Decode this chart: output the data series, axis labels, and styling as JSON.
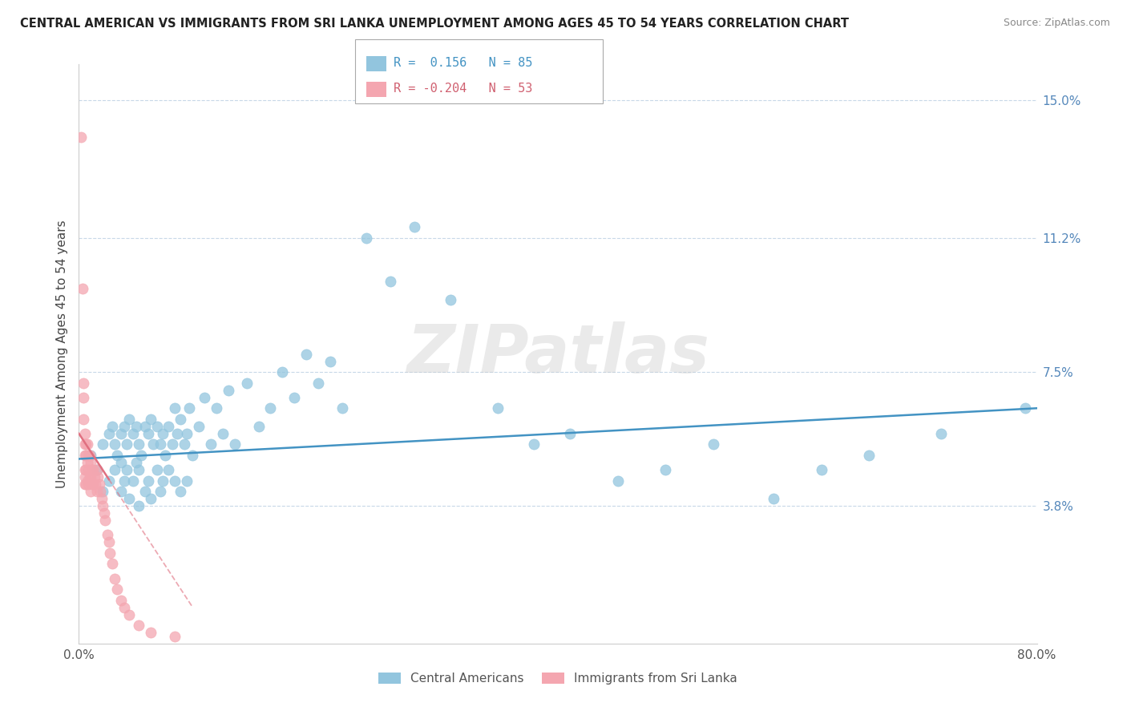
{
  "title": "CENTRAL AMERICAN VS IMMIGRANTS FROM SRI LANKA UNEMPLOYMENT AMONG AGES 45 TO 54 YEARS CORRELATION CHART",
  "source": "Source: ZipAtlas.com",
  "ylabel": "Unemployment Among Ages 45 to 54 years",
  "xlim": [
    0.0,
    0.8
  ],
  "ylim": [
    0.0,
    0.16
  ],
  "yticks": [
    0.038,
    0.075,
    0.112,
    0.15
  ],
  "ytick_labels": [
    "3.8%",
    "7.5%",
    "11.2%",
    "15.0%"
  ],
  "xticks": [
    0.0,
    0.8
  ],
  "xtick_labels": [
    "0.0%",
    "80.0%"
  ],
  "r_blue": 0.156,
  "n_blue": 85,
  "r_pink": -0.204,
  "n_pink": 53,
  "blue_color": "#92c5de",
  "pink_color": "#f4a6b0",
  "line_blue_color": "#4393c3",
  "line_pink_color": "#e07080",
  "watermark": "ZIPatlas",
  "legend_label_blue": "Central Americans",
  "legend_label_pink": "Immigrants from Sri Lanka",
  "blue_scatter_x": [
    0.01,
    0.015,
    0.02,
    0.02,
    0.025,
    0.025,
    0.028,
    0.03,
    0.03,
    0.032,
    0.035,
    0.035,
    0.035,
    0.038,
    0.038,
    0.04,
    0.04,
    0.042,
    0.042,
    0.045,
    0.045,
    0.048,
    0.048,
    0.05,
    0.05,
    0.05,
    0.052,
    0.055,
    0.055,
    0.058,
    0.058,
    0.06,
    0.06,
    0.062,
    0.065,
    0.065,
    0.068,
    0.068,
    0.07,
    0.07,
    0.072,
    0.075,
    0.075,
    0.078,
    0.08,
    0.08,
    0.082,
    0.085,
    0.085,
    0.088,
    0.09,
    0.09,
    0.092,
    0.095,
    0.1,
    0.105,
    0.11,
    0.115,
    0.12,
    0.125,
    0.13,
    0.14,
    0.15,
    0.16,
    0.17,
    0.18,
    0.19,
    0.2,
    0.21,
    0.22,
    0.24,
    0.26,
    0.28,
    0.31,
    0.35,
    0.38,
    0.41,
    0.45,
    0.49,
    0.53,
    0.58,
    0.62,
    0.66,
    0.72,
    0.79
  ],
  "blue_scatter_y": [
    0.052,
    0.048,
    0.055,
    0.042,
    0.058,
    0.045,
    0.06,
    0.055,
    0.048,
    0.052,
    0.058,
    0.05,
    0.042,
    0.06,
    0.045,
    0.055,
    0.048,
    0.062,
    0.04,
    0.058,
    0.045,
    0.06,
    0.05,
    0.055,
    0.048,
    0.038,
    0.052,
    0.06,
    0.042,
    0.058,
    0.045,
    0.062,
    0.04,
    0.055,
    0.06,
    0.048,
    0.055,
    0.042,
    0.058,
    0.045,
    0.052,
    0.06,
    0.048,
    0.055,
    0.065,
    0.045,
    0.058,
    0.062,
    0.042,
    0.055,
    0.058,
    0.045,
    0.065,
    0.052,
    0.06,
    0.068,
    0.055,
    0.065,
    0.058,
    0.07,
    0.055,
    0.072,
    0.06,
    0.065,
    0.075,
    0.068,
    0.08,
    0.072,
    0.078,
    0.065,
    0.112,
    0.1,
    0.115,
    0.095,
    0.065,
    0.055,
    0.058,
    0.045,
    0.048,
    0.055,
    0.04,
    0.048,
    0.052,
    0.058,
    0.065
  ],
  "pink_scatter_x": [
    0.002,
    0.003,
    0.004,
    0.004,
    0.004,
    0.005,
    0.005,
    0.005,
    0.005,
    0.005,
    0.005,
    0.006,
    0.006,
    0.006,
    0.006,
    0.007,
    0.007,
    0.007,
    0.008,
    0.008,
    0.008,
    0.009,
    0.009,
    0.01,
    0.01,
    0.01,
    0.011,
    0.011,
    0.012,
    0.012,
    0.013,
    0.014,
    0.015,
    0.015,
    0.016,
    0.017,
    0.018,
    0.019,
    0.02,
    0.021,
    0.022,
    0.024,
    0.025,
    0.026,
    0.028,
    0.03,
    0.032,
    0.035,
    0.038,
    0.042,
    0.05,
    0.06,
    0.08
  ],
  "pink_scatter_y": [
    0.14,
    0.098,
    0.072,
    0.068,
    0.062,
    0.058,
    0.055,
    0.052,
    0.048,
    0.046,
    0.044,
    0.055,
    0.052,
    0.048,
    0.044,
    0.055,
    0.05,
    0.045,
    0.052,
    0.048,
    0.044,
    0.052,
    0.046,
    0.05,
    0.046,
    0.042,
    0.048,
    0.044,
    0.048,
    0.044,
    0.046,
    0.044,
    0.048,
    0.042,
    0.046,
    0.044,
    0.042,
    0.04,
    0.038,
    0.036,
    0.034,
    0.03,
    0.028,
    0.025,
    0.022,
    0.018,
    0.015,
    0.012,
    0.01,
    0.008,
    0.005,
    0.003,
    0.002
  ],
  "blue_trend_x0": 0.0,
  "blue_trend_x1": 0.8,
  "blue_trend_y0": 0.051,
  "blue_trend_y1": 0.065,
  "pink_trend_x0": 0.0,
  "pink_trend_x1": 0.095,
  "pink_trend_y0": 0.058,
  "pink_trend_y1": 0.01
}
